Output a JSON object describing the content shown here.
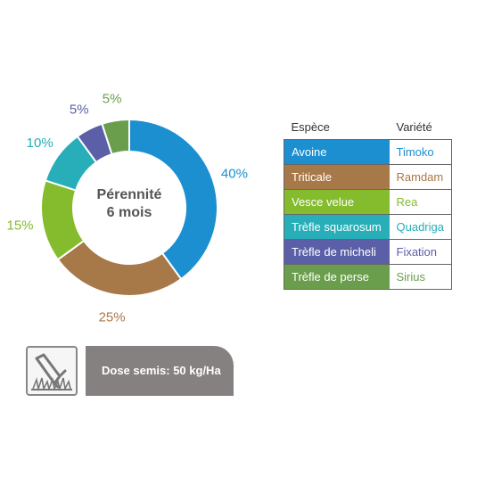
{
  "chart_data": {
    "type": "pie",
    "center_label": [
      "Pérennité",
      "6 mois"
    ],
    "slices": [
      {
        "label": "Avoine",
        "value": 40,
        "display": "40%",
        "color": "#1b8fd0"
      },
      {
        "label": "Triticale",
        "value": 25,
        "display": "25%",
        "color": "#a87948"
      },
      {
        "label": "Vesce velue",
        "value": 15,
        "display": "15%",
        "color": "#84bc2d"
      },
      {
        "label": "Trèfle squarosum",
        "value": 10,
        "display": "10%",
        "color": "#27aeb8"
      },
      {
        "label": "Trèfle de micheli",
        "value": 5,
        "display": "5%",
        "color": "#5a5fa8"
      },
      {
        "label": "Trèfle de perse",
        "value": 5,
        "display": "5%",
        "color": "#6b9e4c"
      }
    ]
  },
  "legend": {
    "header_species": "Espèce",
    "header_variety": "Variété",
    "rows": [
      {
        "species": "Avoine",
        "variety": "Timoko",
        "color": "#1b8fd0"
      },
      {
        "species": "Triticale",
        "variety": "Ramdam",
        "color": "#a87948"
      },
      {
        "species": "Vesce velue",
        "variety": "Rea",
        "color": "#84bc2d"
      },
      {
        "species": "Trèfle squarosum",
        "variety": "Quadriga",
        "color": "#27aeb8"
      },
      {
        "species": "Trèfle de micheli",
        "variety": "Fixation",
        "color": "#5a5fa8"
      },
      {
        "species": "Trèfle de perse",
        "variety": "Sirius",
        "color": "#6b9e4c"
      }
    ]
  },
  "dose": {
    "icon": "seed-drill-icon",
    "text": "Dose semis: 50 kg/Ha"
  }
}
